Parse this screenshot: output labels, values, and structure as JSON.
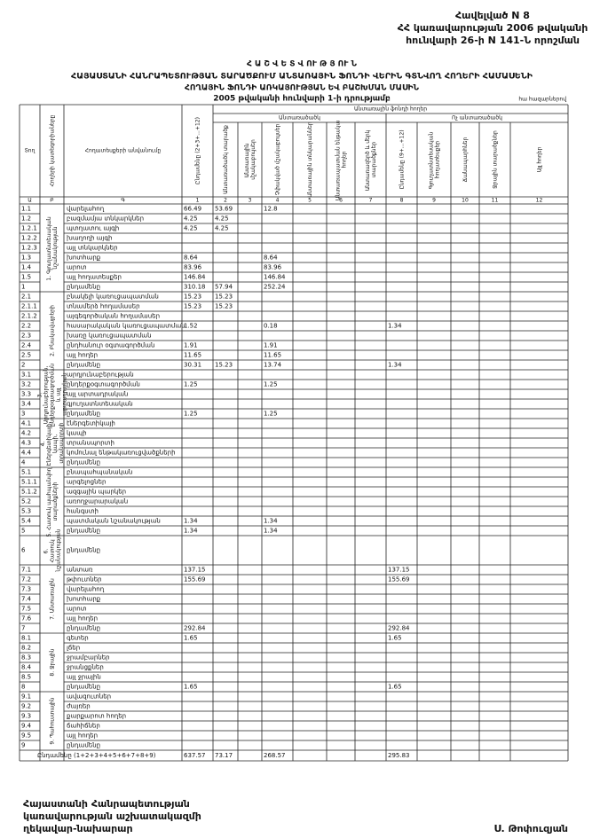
{
  "header": {
    "appendix": [
      "Հավելված N 8",
      "ՀՀ կառավարության 2006 թվականի",
      "հունվարի 26-ի N 141-Ն որոշման"
    ]
  },
  "title": [
    "Հ Ա Շ Վ Ե Տ Վ ՈՒ Թ Յ ՈՒ Ն",
    "ՀԱՅԱՍՏԱՆԻ ՀԱՆՐԱՊԵՏՈՒԹՅԱՆ ՏԱՐԱԾՔՈՒՄ ԱՆՏԱՌԱՅԻՆ ՖՈՆԴԻ ՎԵՐԻՆ ԳՏՆՎՈՂ ՀՈՂԵՐԻ ՀԱՄԱՍԵՆԻ",
    "ՀՈՂԱՅԻՆ ՖՈՆԴԻ ԱՌԿԱՅՈՒԹՅԱՆ ԵՎ ԲԱՇԽՄԱՆ ՄԱՍԻՆ",
    "2005 թվականի հունվարի 1-ի դրությամբ"
  ],
  "units": "հա հազարներով",
  "table": {
    "head": {
      "code": {
        "title": "Տող",
        "number": "Ա"
      },
      "category": {
        "title": "Հողերի կատեգորիաները",
        "number": "Բ"
      },
      "name": {
        "title": "Հողատեսքերի անվանումը",
        "number": "Գ"
      },
      "group_title": "Անտառային ֆոնդի հողեր",
      "covered": "Անտառածածկ",
      "uncovered": "Ոչ անտառածածկ"
    },
    "columns": [
      {
        "title": "Ընդամենը (2+3+...+12)",
        "number": "1"
      },
      {
        "title": "Անտառածածկ տարածք",
        "number": "2"
      },
      {
        "title": "Անտառային մշակաբույսեր",
        "number": "3"
      },
      {
        "title": "Չփակված մշակաբույսեր",
        "number": "4"
      },
      {
        "title": "Անտառային տնկարաններ",
        "number": "5"
      },
      {
        "title": "Անտառապատման ենթակա հողեր",
        "number": "6"
      },
      {
        "title": "Անտառազերծ և մերկ տարածքներ",
        "number": "7"
      },
      {
        "title": "Ընդամենը (9+...+12)",
        "number": "8"
      },
      {
        "title": "Գյուղատնտեսական հողատեսքեր",
        "number": "9"
      },
      {
        "title": "Ճանապարհներ",
        "number": "10"
      },
      {
        "title": "Ջրային տարածքներ",
        "number": "11"
      },
      {
        "title": "Այլ հողեր",
        "number": "12"
      }
    ],
    "groups": [
      "1. Գյուղատնտեսական նշանակության",
      "2. Բնակավայրերի",
      "3. Արդյունաբերության, ընդերքօգտագործման և այլ արտադրական",
      "4. Էներգետիկայի, կապի, տրանսպորտի",
      "5. Հատուկ պահպանվող տարածքների",
      "6. Հատուկ նշանակության",
      "7. Անտառային",
      "8. Ջրային",
      "9. Պահուստային"
    ],
    "rows": [
      {
        "code": "1.1",
        "name": "վարելահող",
        "cells": [
          66.49,
          53.69,
          null,
          12.8,
          null,
          null,
          null,
          null,
          null,
          null,
          null,
          null
        ]
      },
      {
        "code": "1.2",
        "name": "բազմամյա տնկարկներ",
        "cells": [
          4.25,
          4.25,
          null,
          null,
          null,
          null,
          null,
          null,
          null,
          null,
          null,
          null
        ]
      },
      {
        "code": "1.2.1",
        "name": "պտղատու այգի",
        "cells": [
          4.25,
          4.25,
          null,
          null,
          null,
          null,
          null,
          null,
          null,
          null,
          null,
          null
        ]
      },
      {
        "code": "1.2.2",
        "name": "խաղողի այգի",
        "cells": [
          null,
          null,
          null,
          null,
          null,
          null,
          null,
          null,
          null,
          null,
          null,
          null
        ]
      },
      {
        "code": "1.2.3",
        "name": "այլ տնկարկներ",
        "cells": [
          null,
          null,
          null,
          null,
          null,
          null,
          null,
          null,
          null,
          null,
          null,
          null
        ]
      },
      {
        "code": "1.3",
        "name": "խոտհարք",
        "cells": [
          8.64,
          null,
          null,
          8.64,
          null,
          null,
          null,
          null,
          null,
          null,
          null,
          null
        ]
      },
      {
        "code": "1.4",
        "name": "արոտ",
        "cells": [
          83.96,
          null,
          null,
          83.96,
          null,
          null,
          null,
          null,
          null,
          null,
          null,
          null
        ]
      },
      {
        "code": "1.5",
        "name": "այլ հողատեսքեր",
        "cells": [
          146.84,
          null,
          null,
          146.84,
          null,
          null,
          null,
          null,
          null,
          null,
          null,
          null
        ]
      },
      {
        "code": "1",
        "name": "ընդամենը",
        "cells": [
          310.18,
          57.94,
          null,
          252.24,
          null,
          null,
          null,
          null,
          null,
          null,
          null,
          null
        ]
      },
      {
        "code": "2.1",
        "name": "բնակելի կառուցապատման",
        "cells": [
          15.23,
          15.23,
          null,
          null,
          null,
          null,
          null,
          null,
          null,
          null,
          null,
          null
        ]
      },
      {
        "code": "2.1.1",
        "name": "տնամերձ հողամասեր",
        "cells": [
          15.23,
          15.23,
          null,
          null,
          null,
          null,
          null,
          null,
          null,
          null,
          null,
          null
        ]
      },
      {
        "code": "2.1.2",
        "name": "այգեգործական հողամասեր",
        "cells": [
          null,
          null,
          null,
          null,
          null,
          null,
          null,
          null,
          null,
          null,
          null,
          null
        ]
      },
      {
        "code": "2.2",
        "name": "հասարակական կառուցապատման",
        "cells": [
          1.52,
          null,
          null,
          0.18,
          null,
          null,
          null,
          1.34,
          null,
          null,
          null,
          null
        ]
      },
      {
        "code": "2.3",
        "name": "խառը կառուցապատման",
        "cells": [
          null,
          null,
          null,
          null,
          null,
          null,
          null,
          null,
          null,
          null,
          null,
          null
        ]
      },
      {
        "code": "2.4",
        "name": "ընդհանուր օգտագործման",
        "cells": [
          1.91,
          null,
          null,
          1.91,
          null,
          null,
          null,
          null,
          null,
          null,
          null,
          null
        ]
      },
      {
        "code": "2.5",
        "name": "այլ հողեր",
        "cells": [
          11.65,
          null,
          null,
          11.65,
          null,
          null,
          null,
          null,
          null,
          null,
          null,
          null
        ]
      },
      {
        "code": "2",
        "name": "ընդամենը",
        "cells": [
          30.31,
          15.23,
          null,
          13.74,
          null,
          null,
          null,
          1.34,
          null,
          null,
          null,
          null
        ]
      },
      {
        "code": "3.1",
        "name": "արդյունաբերության",
        "cells": [
          null,
          null,
          null,
          null,
          null,
          null,
          null,
          null,
          null,
          null,
          null,
          null
        ]
      },
      {
        "code": "3.2",
        "name": "ընդերքօգտագործման",
        "cells": [
          1.25,
          null,
          null,
          1.25,
          null,
          null,
          null,
          null,
          null,
          null,
          null,
          null
        ]
      },
      {
        "code": "3.3",
        "name": "այլ արտադրական",
        "cells": [
          null,
          null,
          null,
          null,
          null,
          null,
          null,
          null,
          null,
          null,
          null,
          null
        ]
      },
      {
        "code": "3.4",
        "name": "գյուղատնտեսական",
        "cells": [
          null,
          null,
          null,
          null,
          null,
          null,
          null,
          null,
          null,
          null,
          null,
          null
        ]
      },
      {
        "code": "3",
        "name": "ընդամենը",
        "cells": [
          1.25,
          null,
          null,
          1.25,
          null,
          null,
          null,
          null,
          null,
          null,
          null,
          null
        ]
      },
      {
        "code": "4.1",
        "name": "էներգետիկայի",
        "cells": [
          null,
          null,
          null,
          null,
          null,
          null,
          null,
          null,
          null,
          null,
          null,
          null
        ]
      },
      {
        "code": "4.2",
        "name": "կապի",
        "cells": [
          null,
          null,
          null,
          null,
          null,
          null,
          null,
          null,
          null,
          null,
          null,
          null
        ]
      },
      {
        "code": "4.3",
        "name": "տրանսպորտի",
        "cells": [
          null,
          null,
          null,
          null,
          null,
          null,
          null,
          null,
          null,
          null,
          null,
          null
        ]
      },
      {
        "code": "4.4",
        "name": "կոմունալ ենթակառուցվածքների",
        "cells": [
          null,
          null,
          null,
          null,
          null,
          null,
          null,
          null,
          null,
          null,
          null,
          null
        ]
      },
      {
        "code": "4",
        "name": "ընդամենը",
        "cells": [
          null,
          null,
          null,
          null,
          null,
          null,
          null,
          null,
          null,
          null,
          null,
          null
        ]
      },
      {
        "code": "5.1",
        "name": "բնապահպանական",
        "cells": [
          null,
          null,
          null,
          null,
          null,
          null,
          null,
          null,
          null,
          null,
          null,
          null
        ]
      },
      {
        "code": "5.1.1",
        "name": "արգելոցներ",
        "cells": [
          null,
          null,
          null,
          null,
          null,
          null,
          null,
          null,
          null,
          null,
          null,
          null
        ]
      },
      {
        "code": "5.1.2",
        "name": "ազգային պարկեր",
        "cells": [
          null,
          null,
          null,
          null,
          null,
          null,
          null,
          null,
          null,
          null,
          null,
          null
        ]
      },
      {
        "code": "5.2",
        "name": "առողջարարական",
        "cells": [
          null,
          null,
          null,
          null,
          null,
          null,
          null,
          null,
          null,
          null,
          null,
          null
        ]
      },
      {
        "code": "5.3",
        "name": "հանգստի",
        "cells": [
          null,
          null,
          null,
          null,
          null,
          null,
          null,
          null,
          null,
          null,
          null,
          null
        ]
      },
      {
        "code": "5.4",
        "name": "պատմական նշանակության",
        "cells": [
          1.34,
          null,
          null,
          1.34,
          null,
          null,
          null,
          null,
          null,
          null,
          null,
          null
        ]
      },
      {
        "code": "5",
        "name": "ընդամենը",
        "cells": [
          1.34,
          null,
          null,
          1.34,
          null,
          null,
          null,
          null,
          null,
          null,
          null,
          null
        ]
      },
      {
        "code": "6",
        "name": "ընդամենը",
        "cells": [
          null,
          null,
          null,
          null,
          null,
          null,
          null,
          null,
          null,
          null,
          null,
          null
        ]
      },
      {
        "code": "7.1",
        "name": "անտառ",
        "cells": [
          137.15,
          null,
          null,
          null,
          null,
          null,
          null,
          137.15,
          null,
          null,
          null,
          null
        ]
      },
      {
        "code": "7.2",
        "name": "թփուտներ",
        "cells": [
          155.69,
          null,
          null,
          null,
          null,
          null,
          null,
          155.69,
          null,
          null,
          null,
          null
        ]
      },
      {
        "code": "7.3",
        "name": "վարելահող",
        "cells": [
          null,
          null,
          null,
          null,
          null,
          null,
          null,
          null,
          null,
          null,
          null,
          null
        ]
      },
      {
        "code": "7.4",
        "name": "խոտհարք",
        "cells": [
          null,
          null,
          null,
          null,
          null,
          null,
          null,
          null,
          null,
          null,
          null,
          null
        ]
      },
      {
        "code": "7.5",
        "name": "արոտ",
        "cells": [
          null,
          null,
          null,
          null,
          null,
          null,
          null,
          null,
          null,
          null,
          null,
          null
        ]
      },
      {
        "code": "7.6",
        "name": "այլ հողեր",
        "cells": [
          null,
          null,
          null,
          null,
          null,
          null,
          null,
          null,
          null,
          null,
          null,
          null
        ]
      },
      {
        "code": "7",
        "name": "ընդամենը",
        "cells": [
          292.84,
          null,
          null,
          null,
          null,
          null,
          null,
          292.84,
          null,
          null,
          null,
          null
        ]
      },
      {
        "code": "8.1",
        "name": "գետեր",
        "cells": [
          1.65,
          null,
          null,
          null,
          null,
          null,
          null,
          1.65,
          null,
          null,
          null,
          null
        ]
      },
      {
        "code": "8.2",
        "name": "լճեր",
        "cells": [
          null,
          null,
          null,
          null,
          null,
          null,
          null,
          null,
          null,
          null,
          null,
          null
        ]
      },
      {
        "code": "8.3",
        "name": "ջրամբարներ",
        "cells": [
          null,
          null,
          null,
          null,
          null,
          null,
          null,
          null,
          null,
          null,
          null,
          null
        ]
      },
      {
        "code": "8.4",
        "name": "ջրանցքներ",
        "cells": [
          null,
          null,
          null,
          null,
          null,
          null,
          null,
          null,
          null,
          null,
          null,
          null
        ]
      },
      {
        "code": "8.5",
        "name": "այլ ջրային",
        "cells": [
          null,
          null,
          null,
          null,
          null,
          null,
          null,
          null,
          null,
          null,
          null,
          null
        ]
      },
      {
        "code": "8",
        "name": "ընդամենը",
        "cells": [
          1.65,
          null,
          null,
          null,
          null,
          null,
          null,
          1.65,
          null,
          null,
          null,
          null
        ]
      },
      {
        "code": "9.1",
        "name": "ավազուտներ",
        "cells": [
          null,
          null,
          null,
          null,
          null,
          null,
          null,
          null,
          null,
          null,
          null,
          null
        ]
      },
      {
        "code": "9.2",
        "name": "ժայռեր",
        "cells": [
          null,
          null,
          null,
          null,
          null,
          null,
          null,
          null,
          null,
          null,
          null,
          null
        ]
      },
      {
        "code": "9.3",
        "name": "քարքարոտ հողեր",
        "cells": [
          null,
          null,
          null,
          null,
          null,
          null,
          null,
          null,
          null,
          null,
          null,
          null
        ]
      },
      {
        "code": "9.4",
        "name": "ճահիճներ",
        "cells": [
          null,
          null,
          null,
          null,
          null,
          null,
          null,
          null,
          null,
          null,
          null,
          null
        ]
      },
      {
        "code": "9.5",
        "name": "այլ հողեր",
        "cells": [
          null,
          null,
          null,
          null,
          null,
          null,
          null,
          null,
          null,
          null,
          null,
          null
        ]
      },
      {
        "code": "9",
        "name": "ընդամենը",
        "cells": [
          null,
          null,
          null,
          null,
          null,
          null,
          null,
          null,
          null,
          null,
          null,
          null
        ]
      }
    ],
    "total": {
      "name": "Ընդամենը (1+2+3+4+5+6+7+8+9)",
      "cells": [
        637.57,
        73.17,
        null,
        268.57,
        null,
        null,
        null,
        295.83,
        null,
        null,
        null,
        null
      ]
    }
  },
  "footer": {
    "position": [
      "Հայաստանի Հանրապետության",
      "կառավարության աշխատակազմի",
      "ղեկավար-նախարար"
    ],
    "signature": "Ս. Թոփուզյան"
  }
}
